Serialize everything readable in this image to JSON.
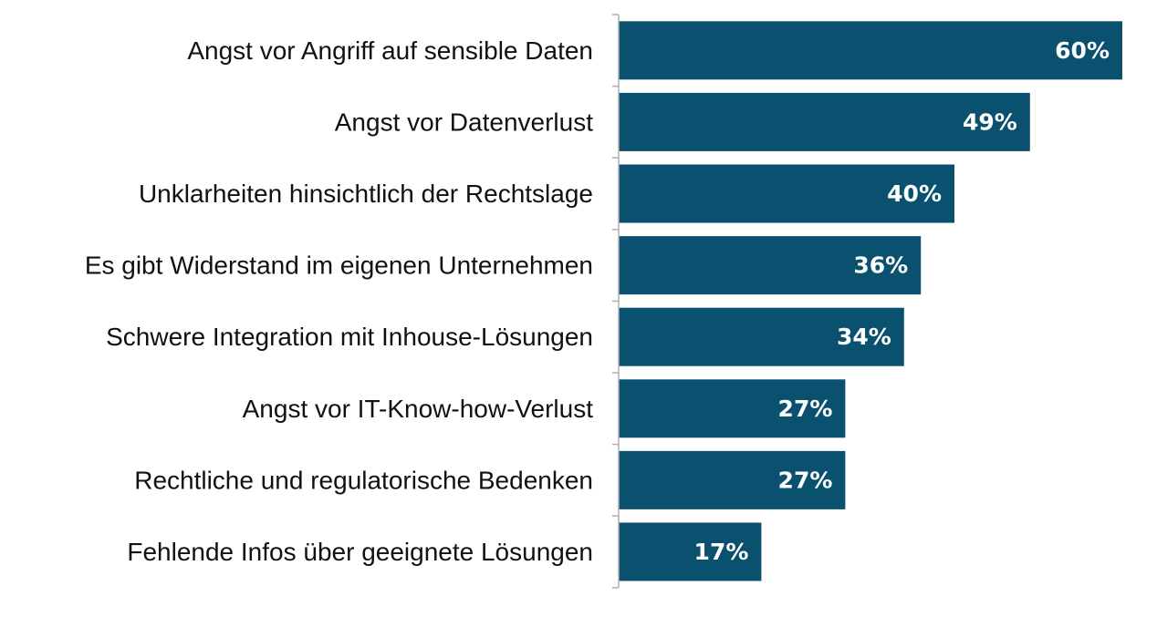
{
  "chart_data": {
    "type": "bar",
    "orientation": "horizontal",
    "categories": [
      "Angst vor Angriff auf sensible Daten",
      "Angst vor Datenverlust",
      "Unklarheiten hinsichtlich der Rechtslage",
      "Es gibt Widerstand im eigenen Unternehmen",
      "Schwere Integration mit Inhouse-Lösungen",
      "Angst vor IT-Know-how-Verlust",
      "Rechtliche und regulatorische Bedenken",
      "Fehlende Infos über geeignete Lösungen"
    ],
    "values": [
      60,
      49,
      40,
      36,
      34,
      27,
      27,
      17
    ],
    "value_labels": [
      "60%",
      "49%",
      "40%",
      "36%",
      "34%",
      "27%",
      "27%",
      "17%"
    ],
    "title": "",
    "xlabel": "",
    "ylabel": "",
    "xlim": [
      0,
      60
    ],
    "grid": false,
    "legend": "none",
    "bar_color": "#0a5170",
    "value_label_color": "#ffffff",
    "axis_color": "#b0b0b0"
  }
}
